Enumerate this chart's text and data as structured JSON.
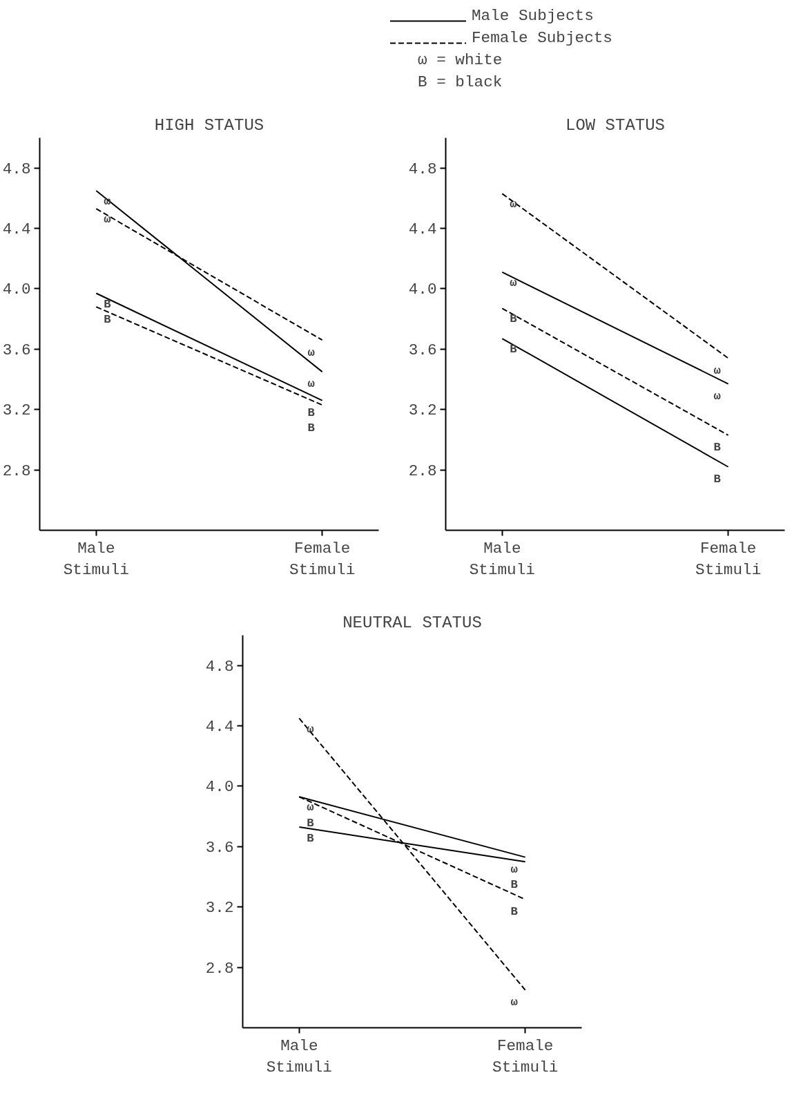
{
  "chart_data": [
    {
      "type": "line",
      "title": "HIGH STATUS",
      "categories": [
        "Male Stimuli",
        "Female Stimuli"
      ],
      "ylim": [
        2.4,
        5.0
      ],
      "yticks": [
        {
          "value": 2.8,
          "label": "2.8"
        },
        {
          "value": 3.2,
          "label": "3.2"
        },
        {
          "value": 3.6,
          "label": "3.6"
        },
        {
          "value": 4.0,
          "label": "4.0"
        },
        {
          "value": 4.4,
          "label": "4.4"
        },
        {
          "value": 4.8,
          "label": "4.8"
        }
      ],
      "grid": false,
      "marker": "none",
      "legend": "top right",
      "series": [
        {
          "name": "Male Subjects",
          "color": "#000000",
          "line_style": "solid",
          "values": [
            4.65,
            3.45
          ],
          "value_labels": [
            "ω",
            "ω"
          ]
        },
        {
          "name": "Female Subjects",
          "color": "#000000",
          "line_style": "dashed",
          "values": [
            4.53,
            3.66
          ],
          "value_labels": [
            "ω",
            "ω"
          ]
        },
        {
          "color": "#000000",
          "line_style": "solid",
          "values": [
            3.97,
            3.26
          ],
          "value_labels": [
            "B",
            "B"
          ]
        },
        {
          "color": "#000000",
          "line_style": "dashed",
          "values": [
            3.88,
            3.23
          ],
          "value_labels": [
            "B",
            "B"
          ]
        }
      ],
      "annotations": [
        "ω = white",
        "B = black"
      ]
    },
    {
      "type": "line",
      "title": "LOW STATUS",
      "categories": [
        "Male Stimuli",
        "Female Stimuli"
      ],
      "ylim": [
        2.4,
        5.0
      ],
      "yticks": [
        {
          "value": 2.8,
          "label": "2.8"
        },
        {
          "value": 3.2,
          "label": "3.2"
        },
        {
          "value": 3.6,
          "label": "3.6"
        },
        {
          "value": 4.0,
          "label": "4.0"
        },
        {
          "value": 4.4,
          "label": "4.4"
        },
        {
          "value": 4.8,
          "label": "4.8"
        }
      ],
      "grid": false,
      "marker": "none",
      "series": [
        {
          "color": "#000000",
          "line_style": "dashed",
          "values": [
            4.63,
            3.54
          ],
          "value_labels": [
            "ω",
            "ω"
          ]
        },
        {
          "color": "#000000",
          "line_style": "solid",
          "values": [
            4.11,
            3.37
          ],
          "value_labels": [
            "ω",
            "ω"
          ]
        },
        {
          "color": "#000000",
          "line_style": "dashed",
          "values": [
            3.87,
            3.03
          ],
          "value_labels": [
            "B",
            "B"
          ]
        },
        {
          "color": "#000000",
          "line_style": "solid",
          "values": [
            3.67,
            2.82
          ],
          "value_labels": [
            "B",
            "B"
          ]
        }
      ]
    },
    {
      "type": "line",
      "title": "NEUTRAL STATUS",
      "categories": [
        "Male Stimuli",
        "Female Stimuli"
      ],
      "ylim": [
        2.4,
        5.0
      ],
      "yticks": [
        {
          "value": 2.8,
          "label": "2.8"
        },
        {
          "value": 3.2,
          "label": "3.2"
        },
        {
          "value": 3.6,
          "label": "3.6"
        },
        {
          "value": 4.0,
          "label": "4.0"
        },
        {
          "value": 4.4,
          "label": "4.4"
        },
        {
          "value": 4.8,
          "label": "4.8"
        }
      ],
      "grid": false,
      "marker": "none",
      "series": [
        {
          "color": "#000000",
          "line_style": "dashed",
          "values": [
            4.45,
            2.65
          ],
          "value_labels": [
            "ω",
            "ω"
          ]
        },
        {
          "color": "#000000",
          "line_style": "solid",
          "values": [
            3.93,
            3.53
          ],
          "value_labels": [
            "ω",
            "ω"
          ]
        },
        {
          "color": "#000000",
          "line_style": "solid",
          "values": [
            3.73,
            3.5
          ],
          "value_labels": [
            "B",
            "B"
          ]
        },
        {
          "color": "#000000",
          "line_style": "dashed",
          "values": [
            3.93,
            3.25
          ],
          "value_labels": [
            "B",
            "B"
          ]
        }
      ]
    }
  ]
}
